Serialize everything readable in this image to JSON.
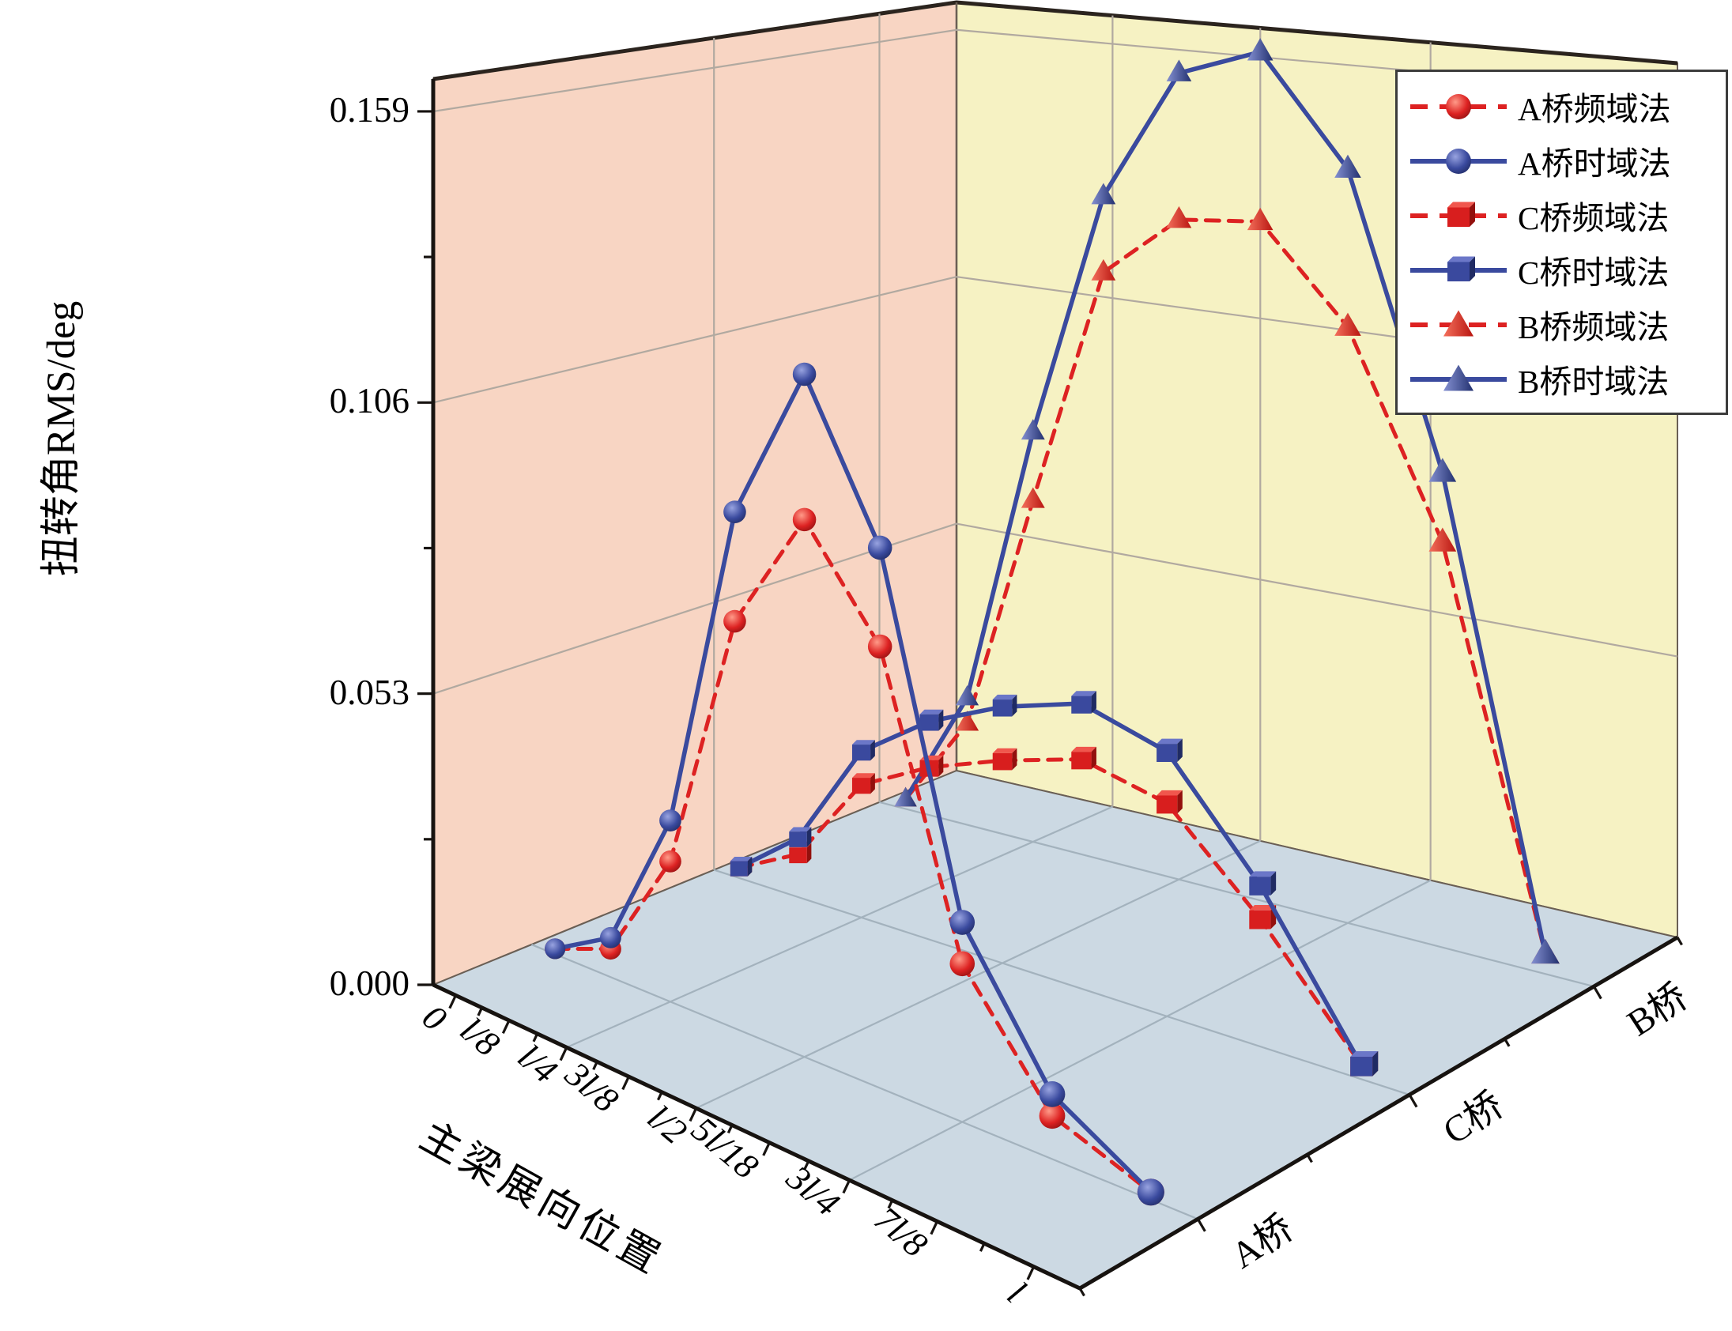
{
  "colors": {
    "red": "#dd2222",
    "blue": "#3a4a9e",
    "wall_left": "#f8d5c3",
    "wall_right": "#f6f2c3",
    "floor": "#ccd9e3",
    "grid_wall": "#b1a9a0",
    "grid_floor": "#a3b2bd",
    "wall_edge": "#6a5f55",
    "box_top_edge": "#2b241e",
    "axis": "#171310",
    "legend_border": "#3c3c3c",
    "text": "#000000"
  },
  "y_axis": {
    "title": "扭转角RMS/deg",
    "tick_labels": [
      "0.000",
      "0.053",
      "0.106",
      "0.159"
    ],
    "tick_values": [
      0,
      0.053,
      0.106,
      0.159
    ]
  },
  "x_axis": {
    "title": "主梁展向位置",
    "tick_labels": [
      "0",
      "l/8",
      "l/4",
      "3l/8",
      "l/2",
      "5l/18",
      "3l/4",
      "7l/8",
      "l"
    ]
  },
  "z_axis": {
    "tick_labels": [
      "A桥",
      "C桥",
      "B桥"
    ]
  },
  "legend": {
    "entries": [
      {
        "label": "A桥频域法",
        "marker": "sphere",
        "line": "dashed",
        "color": "red"
      },
      {
        "label": "A桥时域法",
        "marker": "sphere",
        "line": "solid",
        "color": "blue"
      },
      {
        "label": "C桥频域法",
        "marker": "cube",
        "line": "dashed",
        "color": "red"
      },
      {
        "label": "C桥时域法",
        "marker": "cube",
        "line": "solid",
        "color": "blue"
      },
      {
        "label": "B桥频域法",
        "marker": "cone",
        "line": "dashed",
        "color": "red"
      },
      {
        "label": "B桥时域法",
        "marker": "cone",
        "line": "solid",
        "color": "blue"
      }
    ]
  },
  "chart_data": {
    "type": "line",
    "projection": "3d",
    "title": "",
    "x_categories": [
      "0",
      "l/8",
      "l/4",
      "3l/8",
      "l/2",
      "5l/18",
      "3l/4",
      "7l/8",
      "l"
    ],
    "z_categories": [
      "A桥",
      "C桥",
      "B桥"
    ],
    "y_range": [
      0,
      0.159
    ],
    "y_unit": "deg",
    "grid": true,
    "legend_position": "top-right",
    "series": [
      {
        "name": "A桥频域法",
        "bridge": "A桥",
        "method": "频域法",
        "marker": "sphere",
        "line": "dashed",
        "color": "red",
        "values": [
          0.001,
          0.005,
          0.024,
          0.067,
          0.085,
          0.067,
          0.023,
          0.006,
          0.001
        ]
      },
      {
        "name": "A桥时域法",
        "bridge": "A桥",
        "method": "时域法",
        "marker": "sphere",
        "line": "solid",
        "color": "blue",
        "values": [
          0.001,
          0.007,
          0.031,
          0.085,
          0.108,
          0.082,
          0.029,
          0.009,
          0.001
        ]
      },
      {
        "name": "C桥频域法",
        "bridge": "C桥",
        "method": "频域法",
        "marker": "cube",
        "line": "dashed",
        "color": "red",
        "values": [
          0.002,
          0.008,
          0.024,
          0.03,
          0.034,
          0.037,
          0.033,
          0.019,
          0.002
        ]
      },
      {
        "name": "C桥时域法",
        "bridge": "C桥",
        "method": "时域法",
        "marker": "cube",
        "line": "solid",
        "color": "blue",
        "values": [
          0.002,
          0.011,
          0.03,
          0.038,
          0.043,
          0.046,
          0.041,
          0.024,
          0.002
        ]
      },
      {
        "name": "B桥频域法",
        "bridge": "B桥",
        "method": "频域法",
        "marker": "cone",
        "line": "dashed",
        "color": "red",
        "values": [
          0.002,
          0.02,
          0.065,
          0.108,
          0.117,
          0.116,
          0.098,
          0.064,
          0.003
        ]
      },
      {
        "name": "B桥时域法",
        "bridge": "B桥",
        "method": "时域法",
        "marker": "cone",
        "line": "solid",
        "color": "blue",
        "values": [
          0.002,
          0.025,
          0.078,
          0.122,
          0.143,
          0.145,
          0.124,
          0.075,
          0.003
        ]
      }
    ]
  }
}
